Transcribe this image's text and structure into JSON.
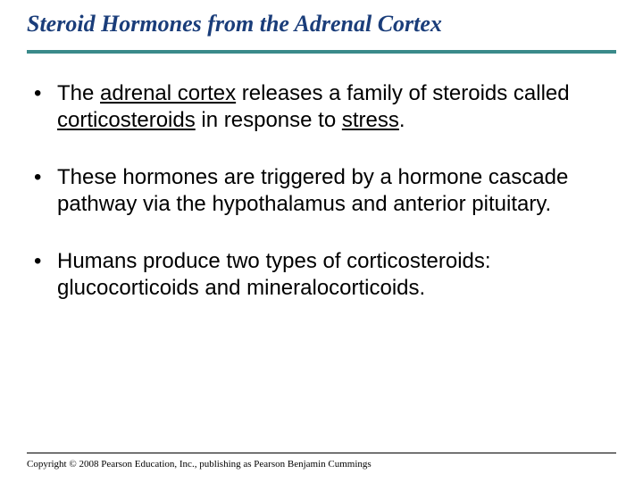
{
  "title": {
    "text": "Steroid Hormones from the Adrenal Cortex",
    "color": "#1a3d7a",
    "fontsize": 26,
    "font_family": "Times New Roman",
    "font_style": "italic",
    "font_weight": "bold"
  },
  "title_rule_color": "#3a8a8a",
  "background_color": "#ffffff",
  "bullets": [
    {
      "parts": [
        {
          "text": "The ",
          "underline": false
        },
        {
          "text": "adrenal cortex",
          "underline": true
        },
        {
          "text": " releases a family of steroids called ",
          "underline": false
        },
        {
          "text": "corticosteroids",
          "underline": true
        },
        {
          "text": " in response to ",
          "underline": false
        },
        {
          "text": "stress",
          "underline": true
        },
        {
          "text": ".",
          "underline": false
        }
      ]
    },
    {
      "parts": [
        {
          "text": "These hormones are triggered by a hormone cascade pathway via the hypothalamus and anterior pituitary.",
          "underline": false
        }
      ]
    },
    {
      "parts": [
        {
          "text": "Humans produce two types of corticosteroids: glucocorticoids and mineralocorticoids.",
          "underline": false
        }
      ]
    }
  ],
  "body_fontsize": 24,
  "body_color": "#000000",
  "bullet_marker": "•",
  "copyright": "Copyright © 2008 Pearson Education, Inc., publishing as Pearson Benjamin Cummings",
  "copyright_fontsize": 11
}
